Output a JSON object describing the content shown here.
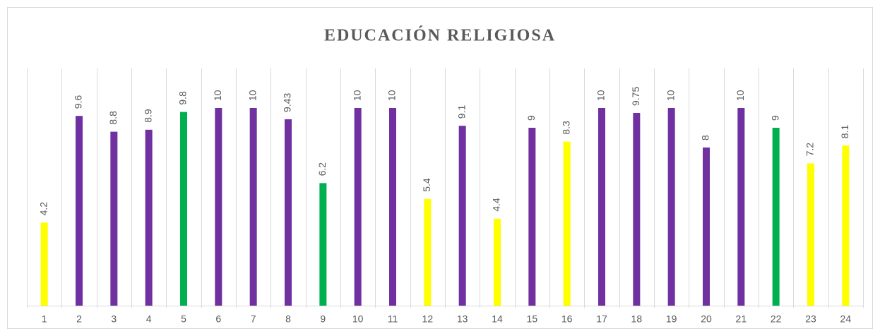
{
  "chart_data": {
    "type": "bar",
    "title": "EDUCACIÓN RELIGIOSA",
    "categories": [
      1,
      2,
      3,
      4,
      5,
      6,
      7,
      8,
      9,
      10,
      11,
      12,
      13,
      14,
      15,
      16,
      17,
      18,
      19,
      20,
      21,
      22,
      23,
      24
    ],
    "values": [
      4.2,
      9.6,
      8.8,
      8.9,
      9.8,
      10,
      10,
      9.43,
      6.2,
      10,
      10,
      5.4,
      9.1,
      4.4,
      9,
      8.3,
      10,
      9.75,
      10,
      8,
      10,
      9,
      7.2,
      8.1
    ],
    "colors": [
      "#ffff00",
      "#7030a0",
      "#7030a0",
      "#7030a0",
      "#00b050",
      "#7030a0",
      "#7030a0",
      "#7030a0",
      "#00b050",
      "#7030a0",
      "#7030a0",
      "#ffff00",
      "#7030a0",
      "#ffff00",
      "#7030a0",
      "#ffff00",
      "#7030a0",
      "#7030a0",
      "#7030a0",
      "#7030a0",
      "#7030a0",
      "#00b050",
      "#ffff00",
      "#ffff00"
    ],
    "ylim": [
      0,
      12
    ]
  }
}
